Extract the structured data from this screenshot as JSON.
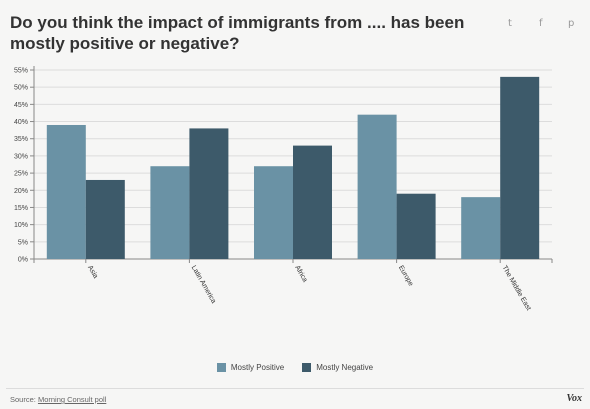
{
  "header": {
    "title": "Do you think the impact of immigrants from .... has been mostly positive or negative?",
    "share_icons": [
      {
        "name": "twitter-icon",
        "glyph": "t"
      },
      {
        "name": "facebook-icon",
        "glyph": "f"
      },
      {
        "name": "pinterest-icon",
        "glyph": "p"
      }
    ]
  },
  "chart_data": {
    "type": "bar",
    "categories": [
      "Asia",
      "Latin America",
      "Africa",
      "Europe",
      "The Middle East"
    ],
    "series": [
      {
        "name": "Mostly Positive",
        "color": "#6a92a5",
        "values": [
          39,
          27,
          27,
          42,
          18
        ]
      },
      {
        "name": "Mostly Negative",
        "color": "#3d5a6a",
        "values": [
          23,
          38,
          33,
          19,
          53
        ]
      }
    ],
    "ylim": [
      0,
      55
    ],
    "yticks": [
      "0%",
      "5%",
      "10%",
      "15%",
      "20%",
      "25%",
      "30%",
      "35%",
      "40%",
      "45%",
      "50%",
      "55%"
    ],
    "grid": true,
    "legend_placement": "bottom-center"
  },
  "footer": {
    "source_label": "Source:",
    "source_link": "Morning Consult poll",
    "brand": "Vox"
  }
}
